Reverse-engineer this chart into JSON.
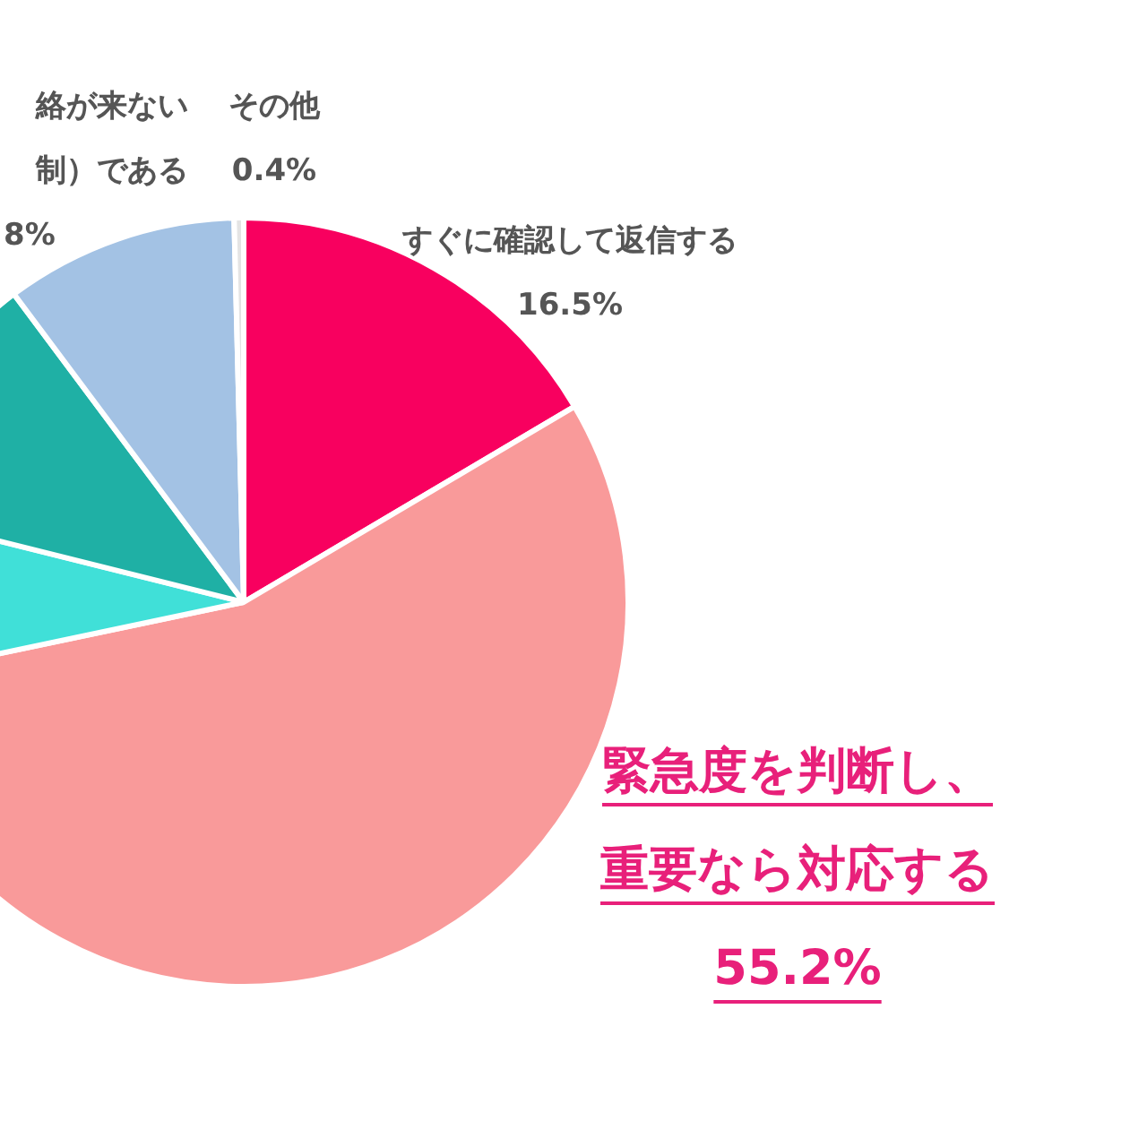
{
  "chart_data": {
    "type": "pie",
    "categories": [
      "すぐに確認して返信する",
      "緊急度を判断し、重要なら対応する",
      null,
      null,
      "絡が来ない制）である",
      "その他"
    ],
    "values": [
      16.5,
      55.2,
      7.2,
      10.9,
      9.8,
      0.4
    ],
    "colors": [
      "#f8005f",
      "#f99a9a",
      "#40e0d8",
      "#1fb0a5",
      "#a3c2e4",
      "#e4e4e4"
    ],
    "value_labels": [
      "16.5%",
      "55.2%",
      null,
      null,
      null,
      "0.4%"
    ],
    "annotations": [
      "8%"
    ],
    "legend": false
  }
}
